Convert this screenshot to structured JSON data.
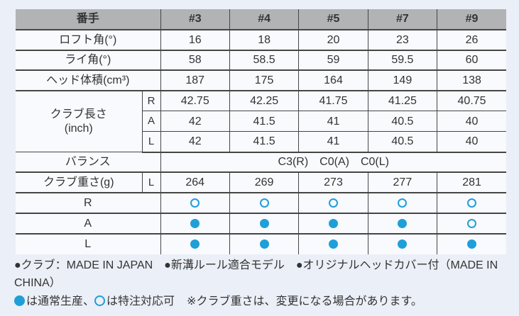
{
  "colors": {
    "accent": "#1f9fd8",
    "header_bg": "#b2b3b5",
    "page_bg": "#ebeff7",
    "cell_bg": "#f8fafd",
    "border": "#454545",
    "text": "#333333"
  },
  "table": {
    "header": {
      "label": "番手",
      "columns": [
        "#3",
        "#4",
        "#5",
        "#7",
        "#9"
      ]
    },
    "rows": {
      "loft": {
        "label": "ロフト角(°)",
        "values": [
          "16",
          "18",
          "20",
          "23",
          "26"
        ]
      },
      "lie": {
        "label": "ライ角(°)",
        "values": [
          "58",
          "58.5",
          "59",
          "59.5",
          "60"
        ]
      },
      "head_volume": {
        "label": "ヘッド体積(cm³)",
        "values": [
          "187",
          "175",
          "164",
          "149",
          "138"
        ]
      },
      "club_length": {
        "label": "クラブ長さ",
        "unit": "(inch)",
        "sub_rows": [
          {
            "flex": "R",
            "values": [
              "42.75",
              "42.25",
              "41.75",
              "41.25",
              "40.75"
            ]
          },
          {
            "flex": "A",
            "values": [
              "42",
              "41.5",
              "41",
              "40.5",
              "40"
            ]
          },
          {
            "flex": "L",
            "values": [
              "42",
              "41.5",
              "41",
              "40.5",
              "40"
            ]
          }
        ]
      },
      "balance": {
        "label": "バランス",
        "value": "C3(R)　C0(A)　C0(L)"
      },
      "club_weight": {
        "label": "クラブ重さ(g)",
        "flex": "L",
        "values": [
          "264",
          "269",
          "273",
          "277",
          "281"
        ]
      },
      "availability": [
        {
          "label": "R",
          "marks": [
            "open",
            "open",
            "open",
            "open",
            "open"
          ]
        },
        {
          "label": "A",
          "marks": [
            "filled",
            "filled",
            "filled",
            "filled",
            "open"
          ]
        },
        {
          "label": "L",
          "marks": [
            "filled",
            "filled",
            "filled",
            "filled",
            "filled"
          ]
        }
      ]
    }
  },
  "footer": {
    "features_line": "●クラブ：MADE IN JAPAN　●新溝ルール適合モデル　●オリジナルヘッドカバー付（MADE IN CHINA）",
    "legend": {
      "filled_mark": "filled",
      "filled_label": "は通常生産、",
      "open_mark": "open",
      "open_label": "は特注対応可",
      "note": "※クラブ重さは、変更になる場合があります。"
    }
  }
}
